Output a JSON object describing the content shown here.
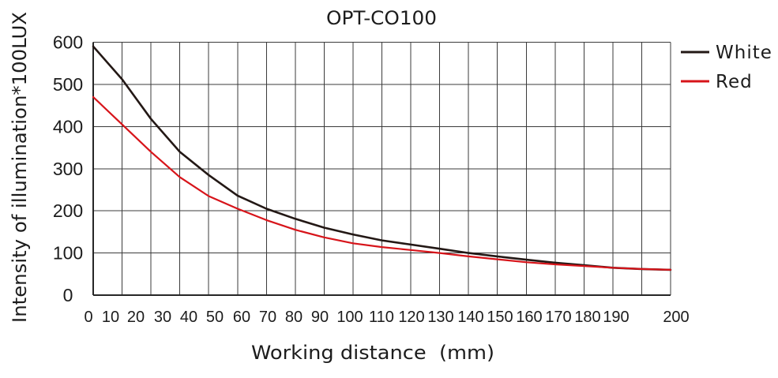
{
  "chart_data": {
    "type": "line",
    "title": "OPT-CO100",
    "xlabel": "Working distance  (mm)",
    "ylabel": "Intensity of illumination*100LUX",
    "x": [
      0,
      10,
      20,
      30,
      40,
      50,
      60,
      70,
      80,
      90,
      100,
      110,
      120,
      130,
      140,
      150,
      160,
      170,
      180,
      190,
      200
    ],
    "x_ticks": [
      0,
      10,
      20,
      30,
      40,
      50,
      60,
      70,
      80,
      90,
      100,
      110,
      120,
      130,
      140,
      150,
      160,
      170,
      180,
      190,
      200
    ],
    "y_ticks": [
      0,
      100,
      200,
      300,
      400,
      500,
      600
    ],
    "xlim": [
      0,
      200
    ],
    "ylim": [
      0,
      600
    ],
    "grid": true,
    "legend_position": "right",
    "series": [
      {
        "name": "White",
        "color": "#231815",
        "values": [
          590,
          512,
          418,
          340,
          285,
          236,
          205,
          181,
          160,
          144,
          130,
          120,
          110,
          100,
          92,
          84,
          77,
          71,
          65,
          62,
          60
        ]
      },
      {
        "name": "Red",
        "color": "#d7141a",
        "values": [
          470,
          405,
          340,
          280,
          235,
          205,
          178,
          155,
          137,
          123,
          114,
          107,
          100,
          92,
          85,
          78,
          73,
          69,
          65,
          62,
          60
        ]
      }
    ]
  }
}
